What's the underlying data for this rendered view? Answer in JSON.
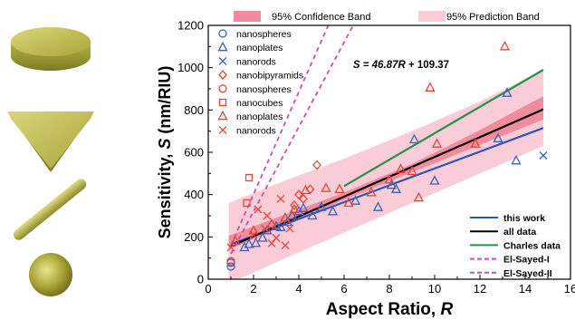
{
  "shapes": [
    {
      "name": "disk"
    },
    {
      "name": "triangle-plate"
    },
    {
      "name": "rod"
    },
    {
      "name": "sphere"
    }
  ],
  "chart_data": {
    "type": "scatter",
    "title": "",
    "xlabel_main": "Aspect Ratio, ",
    "xlabel_var": "R",
    "ylabel_main": "Sensitivity, ",
    "ylabel_var": "S",
    "ylabel_unit": " (nm/RIU)",
    "xlim": [
      0,
      16
    ],
    "ylim": [
      0,
      1200
    ],
    "xticks": [
      0,
      2,
      4,
      6,
      8,
      10,
      12,
      14,
      16
    ],
    "yticks": [
      0,
      200,
      400,
      600,
      800,
      1000,
      1200
    ],
    "equation_prefix": "S = 46.87",
    "equation_var": "R",
    "equation_suffix": " + 109.37",
    "bands": [
      {
        "name": "95% Confidence Band",
        "color": "#f08c9e",
        "lower": [
          [
            0.9,
            140
          ],
          [
            3,
            235
          ],
          [
            6,
            375
          ],
          [
            9,
            505
          ],
          [
            12,
            635
          ],
          [
            14.8,
            755
          ]
        ],
        "upper": [
          [
            0.9,
            205
          ],
          [
            3,
            290
          ],
          [
            6,
            410
          ],
          [
            9,
            545
          ],
          [
            12,
            705
          ],
          [
            14.8,
            865
          ]
        ]
      },
      {
        "name": "95% Prediction Band",
        "color": "#f9ccd7",
        "lower": [
          [
            0.9,
            -20
          ],
          [
            3,
            80
          ],
          [
            6,
            220
          ],
          [
            9,
            360
          ],
          [
            12,
            500
          ],
          [
            14.8,
            630
          ]
        ],
        "upper": [
          [
            0.9,
            360
          ],
          [
            3,
            450
          ],
          [
            6,
            570
          ],
          [
            9,
            700
          ],
          [
            12,
            840
          ],
          [
            14.8,
            990
          ]
        ]
      }
    ],
    "series": [
      {
        "name": "nanospheres",
        "marker": "circle",
        "color": "#3a63b8",
        "points": [
          [
            1,
            60
          ],
          [
            1,
            78
          ]
        ]
      },
      {
        "name": "nanoplates",
        "marker": "triangle",
        "color": "#3a63b8",
        "points": [
          [
            1.6,
            150
          ],
          [
            1.8,
            165
          ],
          [
            2.1,
            170
          ],
          [
            2.4,
            195
          ],
          [
            2.6,
            230
          ],
          [
            3.0,
            250
          ],
          [
            3.2,
            245
          ],
          [
            3.5,
            270
          ],
          [
            3.7,
            300
          ],
          [
            4.0,
            320
          ],
          [
            4.2,
            335
          ],
          [
            4.6,
            300
          ],
          [
            5.0,
            340
          ],
          [
            5.5,
            320
          ],
          [
            6.5,
            370
          ],
          [
            7.5,
            340
          ],
          [
            8.1,
            445
          ],
          [
            8.3,
            425
          ],
          [
            9.1,
            660
          ],
          [
            10.0,
            465
          ],
          [
            12.8,
            665
          ],
          [
            13.2,
            880
          ],
          [
            13.6,
            560
          ]
        ]
      },
      {
        "name": "nanorods",
        "marker": "x",
        "color": "#3a63b8",
        "points": [
          [
            14.8,
            585
          ]
        ]
      },
      {
        "name": "nanobipyramids",
        "marker": "diamond",
        "color": "#e6453a",
        "points": [
          [
            4.0,
            400
          ],
          [
            4.5,
            425
          ],
          [
            4.8,
            540
          ],
          [
            4.2,
            380
          ],
          [
            3.8,
            350
          ]
        ]
      },
      {
        "name": "nanospheres",
        "marker": "circle",
        "color": "#e6453a",
        "points": [
          [
            1,
            85
          ]
        ]
      },
      {
        "name": "nanocubes",
        "marker": "square",
        "color": "#e6453a",
        "points": [
          [
            1.8,
            480
          ],
          [
            1.7,
            360
          ]
        ]
      },
      {
        "name": "nanoplates",
        "marker": "triangle",
        "color": "#e6453a",
        "points": [
          [
            1.2,
            180
          ],
          [
            2.0,
            230
          ],
          [
            2.8,
            260
          ],
          [
            3.4,
            290
          ],
          [
            3.8,
            330
          ],
          [
            4.3,
            420
          ],
          [
            5.2,
            430
          ],
          [
            5.8,
            425
          ],
          [
            6.2,
            360
          ],
          [
            7.2,
            410
          ],
          [
            8.0,
            470
          ],
          [
            8.5,
            520
          ],
          [
            9.3,
            385
          ],
          [
            9.8,
            905
          ],
          [
            10.1,
            640
          ],
          [
            11.8,
            640
          ],
          [
            13.1,
            1100
          ],
          [
            9.0,
            510
          ]
        ]
      },
      {
        "name": "nanorods",
        "marker": "x",
        "color": "#e6453a",
        "points": [
          [
            2.0,
            210
          ],
          [
            2.5,
            240
          ],
          [
            3.0,
            195
          ],
          [
            3.2,
            380
          ],
          [
            2.6,
            300
          ],
          [
            2.2,
            330
          ],
          [
            3.6,
            240
          ],
          [
            2.8,
            170
          ],
          [
            3.4,
            160
          ],
          [
            1.0,
            150
          ]
        ]
      }
    ],
    "lines": [
      {
        "name": "this work",
        "color": "#2e55b8",
        "dash": false,
        "points": [
          [
            1,
            165
          ],
          [
            14.8,
            715
          ]
        ]
      },
      {
        "name": "all data",
        "color": "#000000",
        "dash": false,
        "points": [
          [
            1,
            156
          ],
          [
            14.8,
            803
          ]
        ]
      },
      {
        "name": "Charles data",
        "color": "#25914a",
        "dash": false,
        "points": [
          [
            6,
            440
          ],
          [
            14.8,
            990
          ]
        ]
      },
      {
        "name": "El-Sayed-I",
        "color": "#cc4fa8",
        "dash": true,
        "points": [
          [
            1,
            160
          ],
          [
            5.3,
            1200
          ]
        ]
      },
      {
        "name": "El-Sayed-II",
        "color": "#cc4fa8",
        "dash": true,
        "points": [
          [
            1,
            120
          ],
          [
            6.4,
            1200
          ]
        ]
      }
    ]
  }
}
